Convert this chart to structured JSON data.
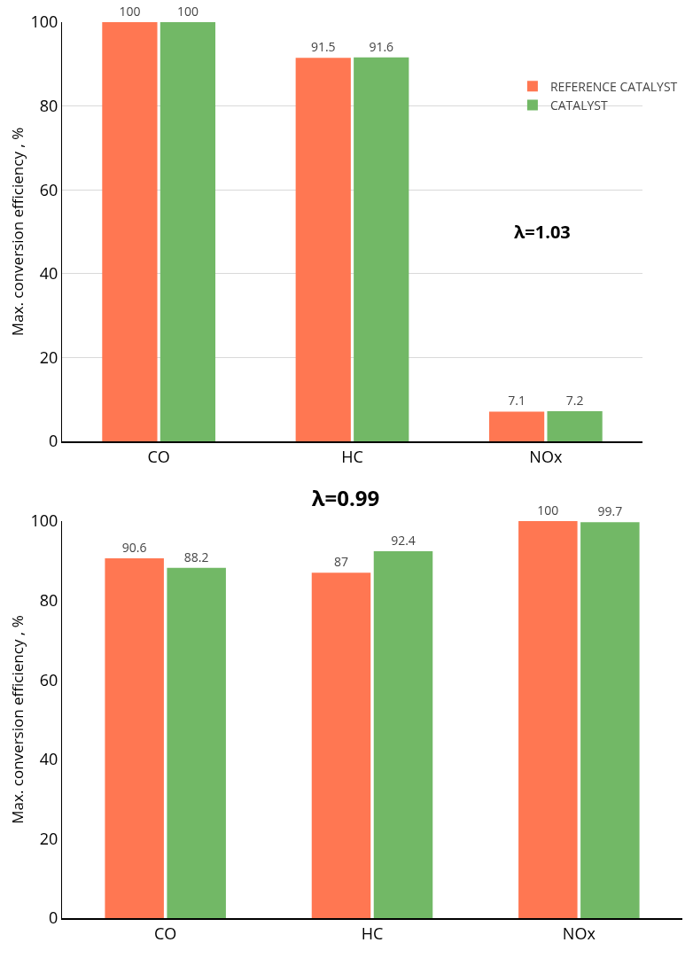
{
  "chart_data": [
    {
      "type": "bar",
      "ylabel": "Max. conversion efficiency , %",
      "categories": [
        "CO",
        "HC",
        "NOx"
      ],
      "series": [
        {
          "name": "REFERENCE CATALYST",
          "color": "#ff7752",
          "values": [
            100,
            91.5,
            7.1
          ]
        },
        {
          "name": "CATALYST",
          "color": "#72b866",
          "values": [
            100,
            91.6,
            7.2
          ]
        }
      ],
      "ylim": [
        0,
        100
      ],
      "yticks": [
        0,
        20,
        40,
        60,
        80,
        100
      ],
      "grid": "y",
      "legend": "top right",
      "data_labels": true,
      "annotations": [
        "λ=1.03"
      ]
    },
    {
      "type": "bar",
      "title": "λ=0.99",
      "ylabel": "Max. conversion efficiency , %",
      "categories": [
        "CO",
        "HC",
        "NOx"
      ],
      "series": [
        {
          "color": "#ff7752",
          "values": [
            90.6,
            87,
            100
          ]
        },
        {
          "color": "#72b866",
          "values": [
            88.2,
            92.4,
            99.7
          ]
        }
      ],
      "ylim": [
        0,
        100
      ],
      "yticks": [
        0,
        20,
        40,
        60,
        80,
        100
      ],
      "grid": false,
      "legend": false,
      "data_labels": true
    }
  ]
}
